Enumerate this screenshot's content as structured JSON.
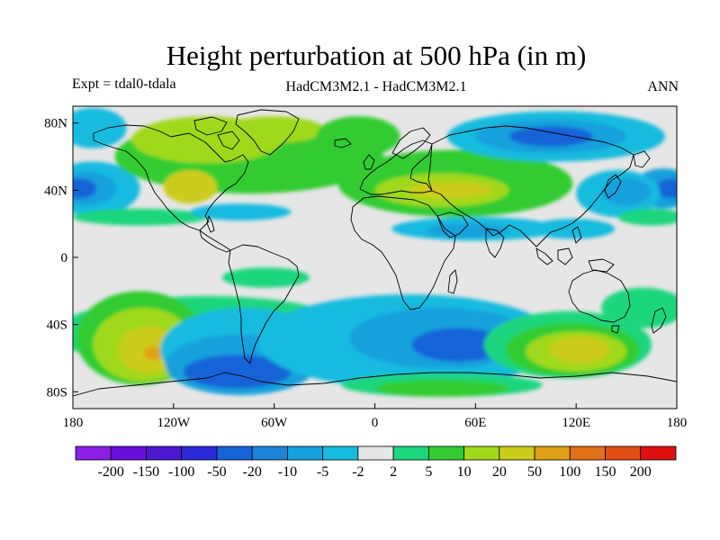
{
  "title": "Height perturbation at 500 hPa (in m)",
  "subtitle_left": "Expt = tdal0-tdala",
  "subtitle_center": "HadCM3M2.1 - HadCM3M2.1",
  "subtitle_right": "ANN",
  "map": {
    "projection": "equirectangular",
    "lon_range": [
      -180,
      180
    ],
    "lat_range": [
      -90,
      90
    ],
    "background_color": "#e6e6e6",
    "coastline_color": "#000000",
    "x_ticks": [
      {
        "lon": -180,
        "label": "180"
      },
      {
        "lon": -120,
        "label": "120W"
      },
      {
        "lon": -60,
        "label": "60W"
      },
      {
        "lon": 0,
        "label": "0"
      },
      {
        "lon": 60,
        "label": "60E"
      },
      {
        "lon": 120,
        "label": "120E"
      },
      {
        "lon": 180,
        "label": "180"
      }
    ],
    "y_ticks": [
      {
        "lat": 80,
        "label": "80N"
      },
      {
        "lat": 40,
        "label": "40N"
      },
      {
        "lat": 0,
        "label": "0"
      },
      {
        "lat": -40,
        "label": "40S"
      },
      {
        "lat": -80,
        "label": "80S"
      }
    ],
    "anomaly_regions": [
      {
        "lon": -168,
        "lat": 41,
        "rlon": 28,
        "rlat": 16,
        "level": -2
      },
      {
        "lon": -172,
        "lat": 41,
        "rlon": 18,
        "rlat": 10,
        "level": -5
      },
      {
        "lon": -176,
        "lat": 41,
        "rlon": 10,
        "rlat": 6,
        "level": -20
      },
      {
        "lon": 172,
        "lat": 41,
        "rlon": 18,
        "rlat": 12,
        "level": -5
      },
      {
        "lon": 176,
        "lat": 41,
        "rlon": 8,
        "rlat": 6,
        "level": -20
      },
      {
        "lon": -168,
        "lat": 77,
        "rlon": 20,
        "rlat": 12,
        "level": -2
      },
      {
        "lon": -75,
        "lat": 60,
        "rlon": 80,
        "rlat": 22,
        "level": 5
      },
      {
        "lon": -100,
        "lat": 70,
        "rlon": 45,
        "rlat": 14,
        "level": 10
      },
      {
        "lon": -110,
        "lat": 42,
        "rlon": 16,
        "rlat": 10,
        "level": 20
      },
      {
        "lon": -60,
        "lat": 76,
        "rlon": 30,
        "rlat": 8,
        "level": 10
      },
      {
        "lon": 48,
        "lat": 44,
        "rlon": 70,
        "rlat": 20,
        "level": 5
      },
      {
        "lon": 40,
        "lat": 40,
        "rlon": 40,
        "rlat": 10,
        "level": 10
      },
      {
        "lon": 45,
        "lat": 40,
        "rlon": 25,
        "rlat": 5,
        "level": 20
      },
      {
        "lon": -10,
        "lat": 72,
        "rlon": 25,
        "rlat": 12,
        "level": 5
      },
      {
        "lon": 108,
        "lat": 72,
        "rlon": 65,
        "rlat": 15,
        "level": -2
      },
      {
        "lon": 105,
        "lat": 72,
        "rlon": 45,
        "rlat": 10,
        "level": -5
      },
      {
        "lon": 105,
        "lat": 72,
        "rlon": 25,
        "rlat": 6,
        "level": -20
      },
      {
        "lon": 145,
        "lat": 38,
        "rlon": 25,
        "rlat": 14,
        "level": -2
      },
      {
        "lon": 150,
        "lat": 39,
        "rlon": 15,
        "rlat": 8,
        "level": -5
      },
      {
        "lon": 60,
        "lat": 17,
        "rlon": 50,
        "rlat": 7,
        "level": -2
      },
      {
        "lon": 55,
        "lat": 16,
        "rlon": 25,
        "rlat": 4,
        "level": -5
      },
      {
        "lon": 118,
        "lat": 17,
        "rlon": 25,
        "rlat": 6,
        "level": -2
      },
      {
        "lon": -140,
        "lat": 24,
        "rlon": 40,
        "rlat": 5,
        "level": 2
      },
      {
        "lon": 165,
        "lat": 24,
        "rlon": 20,
        "rlat": 5,
        "level": 2
      },
      {
        "lon": -80,
        "lat": 27,
        "rlon": 30,
        "rlat": 5,
        "level": -2
      },
      {
        "lon": -65,
        "lat": -12,
        "rlon": 26,
        "rlat": 6,
        "level": 2
      },
      {
        "lon": -100,
        "lat": -45,
        "rlon": 90,
        "rlat": 22,
        "level": 2
      },
      {
        "lon": -140,
        "lat": -48,
        "rlon": 38,
        "rlat": 28,
        "level": 5
      },
      {
        "lon": -138,
        "lat": -52,
        "rlon": 30,
        "rlat": 22,
        "level": 10
      },
      {
        "lon": -135,
        "lat": -55,
        "rlon": 18,
        "rlat": 14,
        "level": 20
      },
      {
        "lon": -132,
        "lat": -57,
        "rlon": 6,
        "rlat": 4,
        "level": 50
      },
      {
        "lon": -78,
        "lat": -55,
        "rlon": 50,
        "rlat": 25,
        "level": -2
      },
      {
        "lon": -80,
        "lat": -64,
        "rlon": 45,
        "rlat": 18,
        "level": -5
      },
      {
        "lon": -82,
        "lat": -68,
        "rlon": 32,
        "rlat": 10,
        "level": -20
      },
      {
        "lon": 20,
        "lat": -50,
        "rlon": 90,
        "rlat": 28,
        "level": -2
      },
      {
        "lon": 40,
        "lat": -48,
        "rlon": 55,
        "rlat": 18,
        "level": -5
      },
      {
        "lon": 50,
        "lat": -52,
        "rlon": 28,
        "rlat": 10,
        "level": -20
      },
      {
        "lon": 115,
        "lat": -52,
        "rlon": 50,
        "rlat": 20,
        "level": 2
      },
      {
        "lon": 118,
        "lat": -55,
        "rlon": 40,
        "rlat": 16,
        "level": 5
      },
      {
        "lon": 120,
        "lat": -56,
        "rlon": 30,
        "rlat": 12,
        "level": 10
      },
      {
        "lon": 122,
        "lat": -55,
        "rlon": 18,
        "rlat": 8,
        "level": 20
      },
      {
        "lon": 40,
        "lat": -76,
        "rlon": 60,
        "rlat": 7,
        "level": 2
      },
      {
        "lon": 40,
        "lat": -78,
        "rlon": 40,
        "rlat": 5,
        "level": 5
      },
      {
        "lon": 160,
        "lat": -30,
        "rlon": 25,
        "rlat": 12,
        "level": 2
      }
    ]
  },
  "colorbar": {
    "colors": [
      "#8c1ee6",
      "#6a0fd9",
      "#4a16cf",
      "#2a2ad9",
      "#1764d8",
      "#1b83d8",
      "#14a0dc",
      "#17bbdf",
      "#e6e6e6",
      "#1ed67d",
      "#33cc33",
      "#a0d91a",
      "#cccc1a",
      "#e0a018",
      "#e07018",
      "#e04e14",
      "#e01010"
    ],
    "labels": [
      "-200",
      "-150",
      "-100",
      "-50",
      "-20",
      "-10",
      "-5",
      "-2",
      "2",
      "5",
      "10",
      "20",
      "50",
      "100",
      "150",
      "200"
    ],
    "levels": [
      -200,
      -150,
      -100,
      -50,
      -20,
      -10,
      -5,
      -2,
      2,
      5,
      10,
      20,
      50,
      100,
      150,
      200
    ]
  }
}
